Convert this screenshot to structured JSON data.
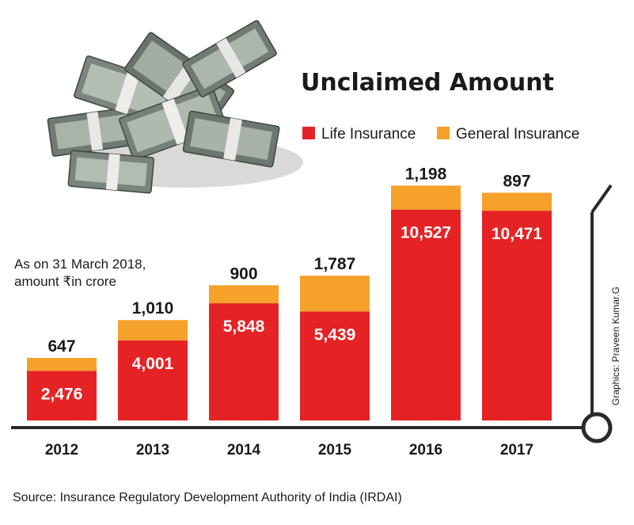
{
  "colors": {
    "life": "#e52325",
    "general": "#f5a12a",
    "text": "#1a1a1a",
    "axis": "#2b2b2b"
  },
  "chart_data": {
    "type": "bar",
    "stacked": true,
    "title": "Unclaimed Amount",
    "note_line1": "As on 31 March 2018,",
    "note_line2": "amount ₹in crore",
    "categories": [
      "2012",
      "2013",
      "2014",
      "2015",
      "2016",
      "2017"
    ],
    "series": [
      {
        "name": "Life Insurance",
        "values": [
          2476,
          4001,
          5848,
          5439,
          10527,
          10471
        ]
      },
      {
        "name": "General Insurance",
        "values": [
          647,
          1010,
          900,
          1787,
          1198,
          897
        ]
      }
    ],
    "value_labels": {
      "life": [
        "2,476",
        "4,001",
        "5,848",
        "5,439",
        "10,527",
        "10,471"
      ],
      "general": [
        "647",
        "1,010",
        "900",
        "1,787",
        "1,198",
        "897"
      ]
    },
    "source": "Source: Insurance Regulatory Development Authority of India (IRDAI)",
    "credit": "Graphics: Praveen Kumar.G",
    "legend_position": "top-right"
  }
}
